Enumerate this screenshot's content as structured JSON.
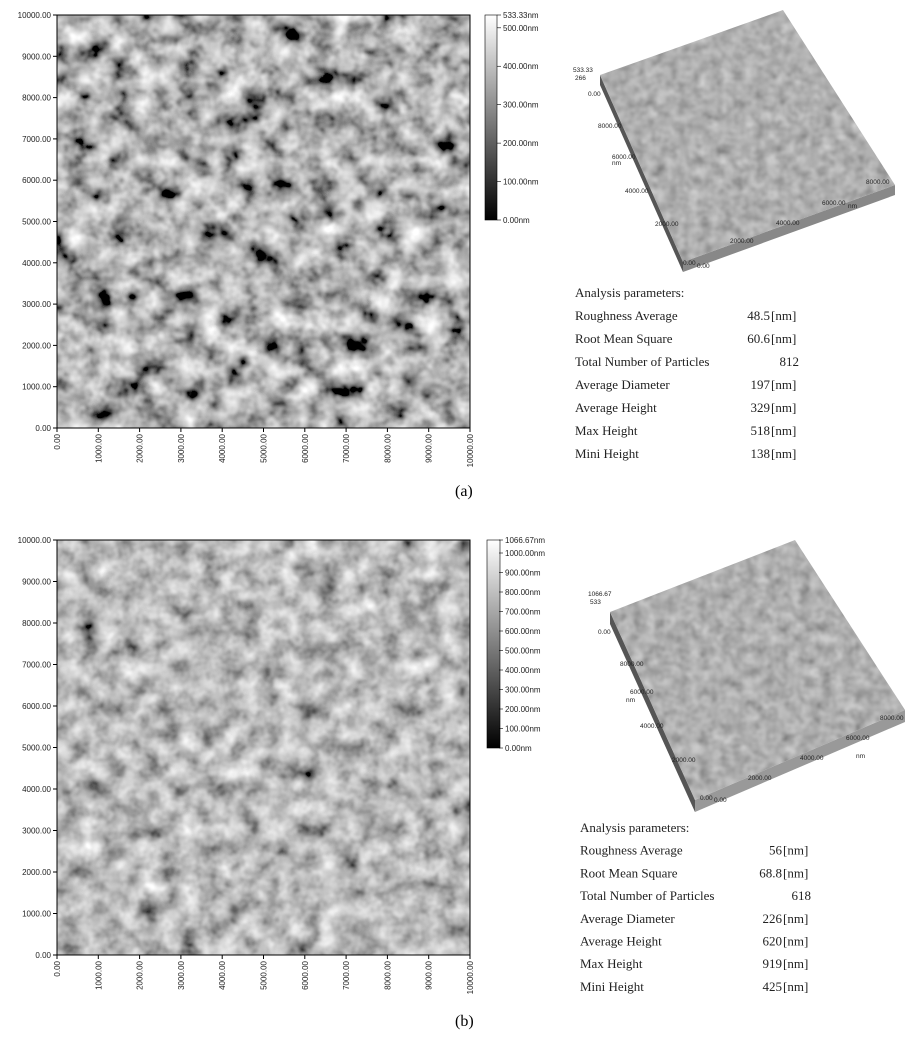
{
  "panels": [
    {
      "caption": "(a)",
      "y_ticks": [
        "0.00",
        "1000.00",
        "2000.00",
        "3000.00",
        "4000.00",
        "5000.00",
        "6000.00",
        "7000.00",
        "8000.00",
        "9000.00",
        "10000.00"
      ],
      "x_ticks": [
        "0.00",
        "1000.00",
        "2000.00",
        "3000.00",
        "4000.00",
        "5000.00",
        "6000.00",
        "7000.00",
        "8000.00",
        "9000.00",
        "10000.00"
      ],
      "colorbar_labels": [
        "533.33nm",
        "500.00nm",
        "400.00nm",
        "300.00nm",
        "200.00nm",
        "100.00nm",
        "0.00nm"
      ],
      "view3d_labels": [
        "533.33",
        "266",
        "0.00",
        "8000.00",
        "6000.00",
        "nm",
        "4000.00",
        "2000.00",
        "0.00",
        "0.00",
        "2000.00",
        "4000.00",
        "6000.00",
        "8000.00",
        "nm"
      ],
      "parameters": {
        "title": "Analysis parameters:",
        "rows": [
          {
            "name": "Roughness Average",
            "value": 48.5,
            "unit": "[nm]"
          },
          {
            "name": "Root Mean Square",
            "value": 60.6,
            "unit": "[nm]"
          },
          {
            "name": "Total Number of Particles",
            "value": 812
          },
          {
            "name": "Average Diameter",
            "value": 197,
            "unit": "[nm]"
          },
          {
            "name": "Average Height",
            "value": 329,
            "unit": "[nm]"
          },
          {
            "name": "Max Height",
            "value": 518,
            "unit": "[nm]"
          },
          {
            "name": "Mini Height",
            "value": 138,
            "unit": "[nm]"
          }
        ]
      }
    },
    {
      "caption": "(b)",
      "y_ticks": [
        "0.00",
        "1000.00",
        "2000.00",
        "3000.00",
        "4000.00",
        "5000.00",
        "6000.00",
        "7000.00",
        "8000.00",
        "9000.00",
        "10000.00"
      ],
      "x_ticks": [
        "0.00",
        "1000.00",
        "2000.00",
        "3000.00",
        "4000.00",
        "5000.00",
        "6000.00",
        "7000.00",
        "8000.00",
        "9000.00",
        "10000.00"
      ],
      "colorbar_labels": [
        "1066.67nm",
        "1000.00nm",
        "900.00nm",
        "800.00nm",
        "700.00nm",
        "600.00nm",
        "500.00nm",
        "400.00nm",
        "300.00nm",
        "200.00nm",
        "100.00nm",
        "0.00nm"
      ],
      "view3d_labels": [
        "1066.67",
        "533",
        "0.00",
        "8000.00",
        "6000.00",
        "nm",
        "4000.00",
        "2000.00",
        "0.00",
        "0.00",
        "2000.00",
        "4000.00",
        "6000.00",
        "8000.00",
        "nm"
      ],
      "parameters": {
        "title": "Analysis parameters:",
        "rows": [
          {
            "name": "Roughness Average",
            "value": 56,
            "unit": "[nm]"
          },
          {
            "name": "Root Mean Square",
            "value": 68.8,
            "unit": "[nm]"
          },
          {
            "name": "Total Number of Particles",
            "value": 618
          },
          {
            "name": "Average Diameter",
            "value": 226,
            "unit": "[nm]"
          },
          {
            "name": "Average Height",
            "value": 620,
            "unit": "[nm]"
          },
          {
            "name": "Max Height",
            "value": 919,
            "unit": "[nm]"
          },
          {
            "name": "Mini Height",
            "value": 425,
            "unit": "[nm]"
          }
        ]
      }
    }
  ]
}
